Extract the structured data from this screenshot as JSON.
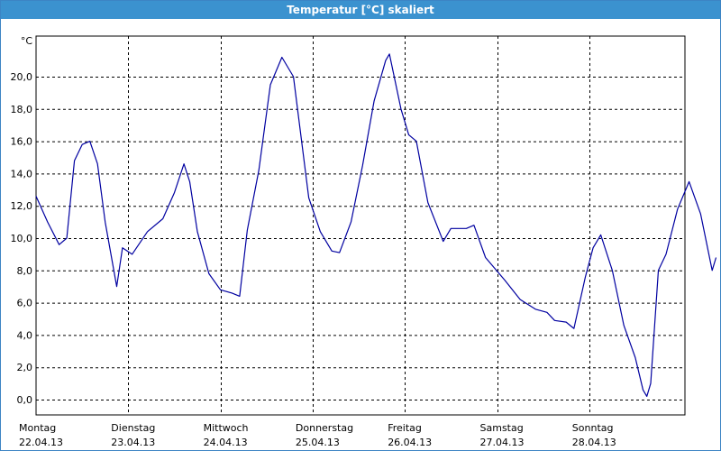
{
  "window": {
    "title": "Temperatur [°C] skaliert"
  },
  "colors": {
    "titlebar": "#3b92cf",
    "line": "#0000a0",
    "grid": "#000000",
    "background": "#ffffff"
  },
  "chart_data": {
    "type": "line",
    "title": "Temperatur [°C] skaliert",
    "ylabel": "°C",
    "ylim": [
      -1,
      23.2
    ],
    "yticks": [
      "0,0",
      "2,0",
      "4,0",
      "6,0",
      "8,0",
      "10,0",
      "12,0",
      "14,0",
      "16,0",
      "18,0",
      "20,0"
    ],
    "grid": true,
    "day_labels": [
      {
        "day": "Montag",
        "date": "22.04.13"
      },
      {
        "day": "Dienstag",
        "date": "23.04.13"
      },
      {
        "day": "Mittwoch",
        "date": "24.04.13"
      },
      {
        "day": "Donnerstag",
        "date": "25.04.13"
      },
      {
        "day": "Freitag",
        "date": "26.04.13"
      },
      {
        "day": "Samstag",
        "date": "27.04.13"
      },
      {
        "day": "Sonntag",
        "date": "28.04.13"
      }
    ],
    "series": [
      {
        "points": [
          [
            "22.04.13 00:00",
            12.6
          ],
          [
            "22.04.13 03:00",
            11.0
          ],
          [
            "22.04.13 06:00",
            9.6
          ],
          [
            "22.04.13 08:00",
            10.0
          ],
          [
            "22.04.13 10:00",
            14.8
          ],
          [
            "22.04.13 12:00",
            15.8
          ],
          [
            "22.04.13 14:00",
            16.0
          ],
          [
            "22.04.13 16:00",
            14.6
          ],
          [
            "22.04.13 18:00",
            11.0
          ],
          [
            "22.04.13 21:00",
            7.0
          ],
          [
            "22.04.13 22:30",
            9.4
          ],
          [
            "23.04.13 01:00",
            9.0
          ],
          [
            "23.04.13 05:00",
            10.4
          ],
          [
            "23.04.13 09:00",
            11.2
          ],
          [
            "23.04.13 12:00",
            12.8
          ],
          [
            "23.04.13 14:30",
            14.6
          ],
          [
            "23.04.13 16:00",
            13.5
          ],
          [
            "23.04.13 18:00",
            10.4
          ],
          [
            "23.04.13 21:00",
            7.8
          ],
          [
            "24.04.13 00:00",
            6.8
          ],
          [
            "24.04.13 03:00",
            6.6
          ],
          [
            "24.04.13 05:00",
            6.4
          ],
          [
            "24.04.13 07:00",
            10.5
          ],
          [
            "24.04.13 10:00",
            14.2
          ],
          [
            "24.04.13 13:00",
            19.5
          ],
          [
            "24.04.13 16:00",
            21.2
          ],
          [
            "24.04.13 19:00",
            20.0
          ],
          [
            "24.04.13 23:00",
            12.5
          ],
          [
            "25.04.13 02:00",
            10.4
          ],
          [
            "25.04.13 05:00",
            9.2
          ],
          [
            "25.04.13 07:00",
            9.1
          ],
          [
            "25.04.13 10:00",
            11.0
          ],
          [
            "25.04.13 13:00",
            14.5
          ],
          [
            "25.04.13 16:00",
            18.5
          ],
          [
            "25.04.13 19:00",
            21.0
          ],
          [
            "25.04.13 20:00",
            21.4
          ],
          [
            "25.04.13 23:00",
            18.0
          ],
          [
            "26.04.13 01:00",
            16.4
          ],
          [
            "26.04.13 03:00",
            16.0
          ],
          [
            "26.04.13 06:00",
            12.2
          ],
          [
            "26.04.13 10:00",
            9.8
          ],
          [
            "26.04.13 12:00",
            10.6
          ],
          [
            "26.04.13 16:00",
            10.6
          ],
          [
            "26.04.13 18:00",
            10.8
          ],
          [
            "26.04.13 21:00",
            8.8
          ],
          [
            "27.04.13 02:00",
            7.4
          ],
          [
            "27.04.13 06:00",
            6.2
          ],
          [
            "27.04.13 10:00",
            5.6
          ],
          [
            "27.04.13 13:00",
            5.4
          ],
          [
            "27.04.13 15:00",
            4.9
          ],
          [
            "27.04.13 18:00",
            4.8
          ],
          [
            "27.04.13 20:00",
            4.4
          ],
          [
            "27.04.13 23:00",
            7.6
          ],
          [
            "28.04.13 01:00",
            9.4
          ],
          [
            "28.04.13 03:00",
            10.2
          ],
          [
            "28.04.13 06:00",
            8.0
          ],
          [
            "28.04.13 09:00",
            4.6
          ],
          [
            "28.04.13 12:00",
            2.6
          ],
          [
            "28.04.13 14:00",
            0.6
          ],
          [
            "28.04.13 15:00",
            0.2
          ],
          [
            "28.04.13 16:00",
            1.0
          ],
          [
            "28.04.13 18:00",
            8.0
          ],
          [
            "28.04.13 20:00",
            9.0
          ],
          [
            "28.04.13 23:00",
            11.8
          ],
          [
            "29.04.13 02:00",
            13.5
          ],
          [
            "29.04.13 05:00",
            11.5
          ],
          [
            "29.04.13 08:00",
            8.0
          ],
          [
            "29.04.13 09:00",
            8.8
          ]
        ]
      }
    ]
  }
}
